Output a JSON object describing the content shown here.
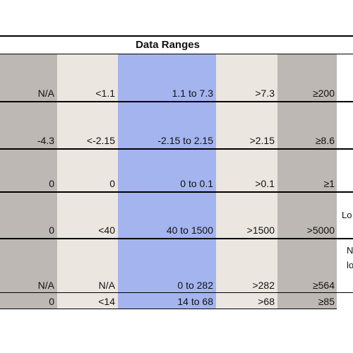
{
  "title": "Data Ranges",
  "colors": {
    "col_na": "#bdb8b3",
    "col_low": "#ece6e0",
    "col_mid": "#a4b4ee",
    "col_high": "#ece6e0",
    "col_vhigh": "#bdb8b3"
  },
  "rows": [
    {
      "c1": "N/A",
      "c2": "<1.1",
      "c3": "1.1 to 7.3",
      "c4": ">7.3",
      "c5": "≥200",
      "side": ""
    },
    {
      "c1": "-4.3",
      "c2": "<-2.15",
      "c3": "-2.15 to 2.15",
      "c4": ">2.15",
      "c5": "≥8.6",
      "side": ""
    },
    {
      "c1": "0",
      "c2": "0",
      "c3": "0 to 0.1",
      "c4": ">0.1",
      "c5": "≥1",
      "side": ""
    },
    {
      "c1": "0",
      "c2": "<40",
      "c3": "40 to 1500",
      "c4": ">1500",
      "c5": ">5000",
      "side": "Lo"
    },
    {
      "c1": "N/A",
      "c2": "N/A",
      "c3": "0 to 282",
      "c4": ">282",
      "c5": "≥564",
      "side": "N",
      "side2": "lo"
    },
    {
      "c1": "0",
      "c2": "<14",
      "c3": "14  to 68",
      "c4": ">68",
      "c5": "≥85",
      "side": ""
    }
  ]
}
